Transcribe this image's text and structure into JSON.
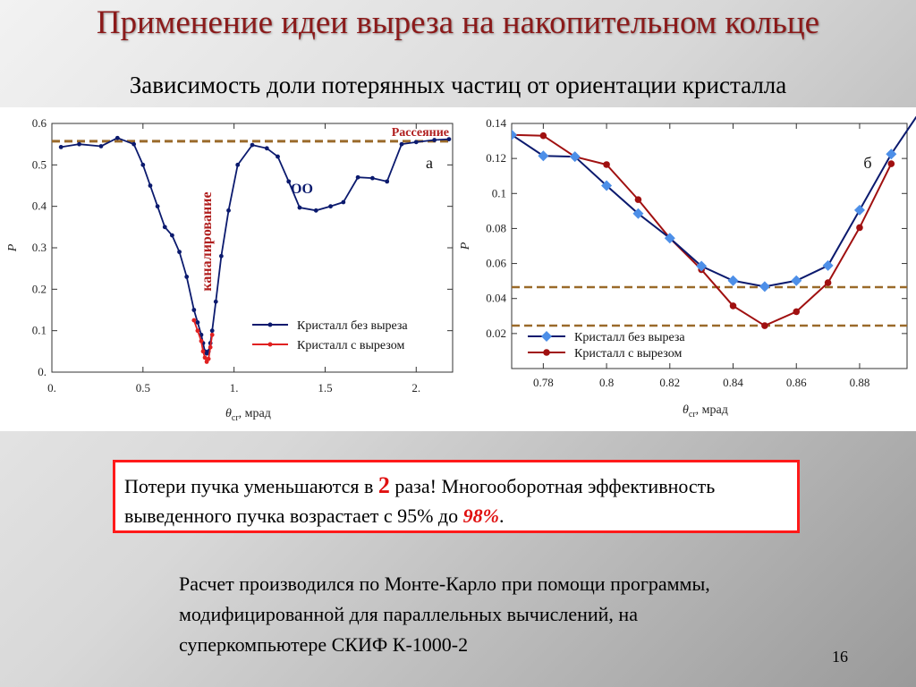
{
  "slide": {
    "title": "Применение идеи выреза на накопительном кольце",
    "subtitle": "Зависимость доли потерянных частиц от ориентации кристалла",
    "box_p1": "Потери пучка уменьшаются в ",
    "box_hl": "2",
    "box_p2": " раза! Многооборотная эффективность выведенного пучка возрастает с 95% до ",
    "box_hl2": "98%",
    "box_p3": ".",
    "note": "Расчет производился по Монте-Карло при помощи программы, модифицированной для параллельных вычислений, на суперкомпьютере СКИФ К-1000-2",
    "page_number": "16"
  },
  "colors": {
    "title": "#8b1a1a",
    "navy": "#0b1a6e",
    "red": "#e02020",
    "blue_diamond": "#4d8fe8",
    "dark_red": "#a01010",
    "dashed": "#9a6a2a",
    "annotation_red": "#b01e1e",
    "box_border": "#ff1a1a"
  },
  "chart_data": [
    {
      "type": "line",
      "panel_label": "а",
      "ylabel": "P",
      "xlabel_main": "θ",
      "xlabel_sub": "cr",
      "xlabel_unit": ", мрад",
      "xlim": [
        0,
        2.2
      ],
      "ylim": [
        0,
        0.6
      ],
      "xticks": [
        0,
        0.5,
        1,
        1.5,
        2
      ],
      "xtick_labels": [
        "0.",
        "0.5",
        "1.",
        "1.5",
        "2."
      ],
      "yticks": [
        0,
        0.1,
        0.2,
        0.3,
        0.4,
        0.5,
        0.6
      ],
      "ytick_labels": [
        "0.",
        "0.1",
        "0.2",
        "0.3",
        "0.4",
        "0.5",
        "0.6"
      ],
      "grid": false,
      "legend_position": "bottom-right",
      "hline": {
        "y": 0.557,
        "label": "Рассеяние"
      },
      "annotations": {
        "channeling": "каналирование",
        "oo": "ОО"
      },
      "series": [
        {
          "name": "Кристалл без выреза",
          "x": [
            0.05,
            0.15,
            0.27,
            0.36,
            0.45,
            0.5,
            0.54,
            0.58,
            0.62,
            0.66,
            0.7,
            0.74,
            0.78,
            0.8,
            0.82,
            0.83,
            0.84,
            0.85,
            0.86,
            0.87,
            0.88,
            0.9,
            0.93,
            0.97,
            1.02,
            1.1,
            1.18,
            1.24,
            1.3,
            1.36,
            1.45,
            1.53,
            1.6,
            1.68,
            1.76,
            1.84,
            1.92,
            2.0,
            2.1,
            2.18
          ],
          "y": [
            0.543,
            0.55,
            0.545,
            0.565,
            0.55,
            0.5,
            0.45,
            0.4,
            0.35,
            0.33,
            0.29,
            0.23,
            0.15,
            0.12,
            0.09,
            0.07,
            0.05,
            0.045,
            0.05,
            0.07,
            0.1,
            0.17,
            0.28,
            0.39,
            0.5,
            0.548,
            0.54,
            0.52,
            0.46,
            0.397,
            0.39,
            0.4,
            0.41,
            0.47,
            0.468,
            0.46,
            0.55,
            0.555,
            0.56,
            0.562
          ]
        },
        {
          "name": "Кристалл с вырезом",
          "x": [
            0.78,
            0.8,
            0.82,
            0.83,
            0.84,
            0.85,
            0.86,
            0.87,
            0.88
          ],
          "y": [
            0.125,
            0.1,
            0.075,
            0.05,
            0.035,
            0.025,
            0.032,
            0.06,
            0.09
          ]
        }
      ]
    },
    {
      "type": "line",
      "panel_label": "б",
      "ylabel": "P",
      "xlabel_main": "θ",
      "xlabel_sub": "cr",
      "xlabel_unit": ", мрад",
      "xlim": [
        0.77,
        0.895
      ],
      "ylim": [
        0,
        0.14
      ],
      "xticks": [
        0.78,
        0.8,
        0.82,
        0.84,
        0.86,
        0.88
      ],
      "xtick_labels": [
        "0.78",
        "0.8",
        "0.82",
        "0.84",
        "0.86",
        "0.88"
      ],
      "yticks": [
        0.02,
        0.04,
        0.06,
        0.08,
        0.1,
        0.12,
        0.14
      ],
      "ytick_labels": [
        "0.02",
        "0.04",
        "0.06",
        "0.08",
        "0.1",
        "0.12",
        "0.14"
      ],
      "grid": false,
      "legend_position": "bottom-left",
      "hlines": [
        0.0465,
        0.0245
      ],
      "series": [
        {
          "name": "Кристалл без выреза",
          "x": [
            0.77,
            0.78,
            0.79,
            0.8,
            0.81,
            0.82,
            0.83,
            0.84,
            0.85,
            0.86,
            0.87,
            0.88,
            0.89
          ],
          "y": [
            0.1335,
            0.1215,
            0.121,
            0.1045,
            0.0885,
            0.0745,
            0.0585,
            0.0502,
            0.0468,
            0.0502,
            0.0588,
            0.0905,
            0.1225
          ]
        },
        {
          "name": "Кристалл с вырезом",
          "x": [
            0.77,
            0.78,
            0.79,
            0.8,
            0.81,
            0.82,
            0.83,
            0.84,
            0.85,
            0.86,
            0.87,
            0.88,
            0.89
          ],
          "y": [
            0.1335,
            0.133,
            0.121,
            0.1165,
            0.0965,
            0.0745,
            0.0565,
            0.0358,
            0.0245,
            0.0325,
            0.049,
            0.0805,
            0.117
          ]
        }
      ]
    }
  ]
}
